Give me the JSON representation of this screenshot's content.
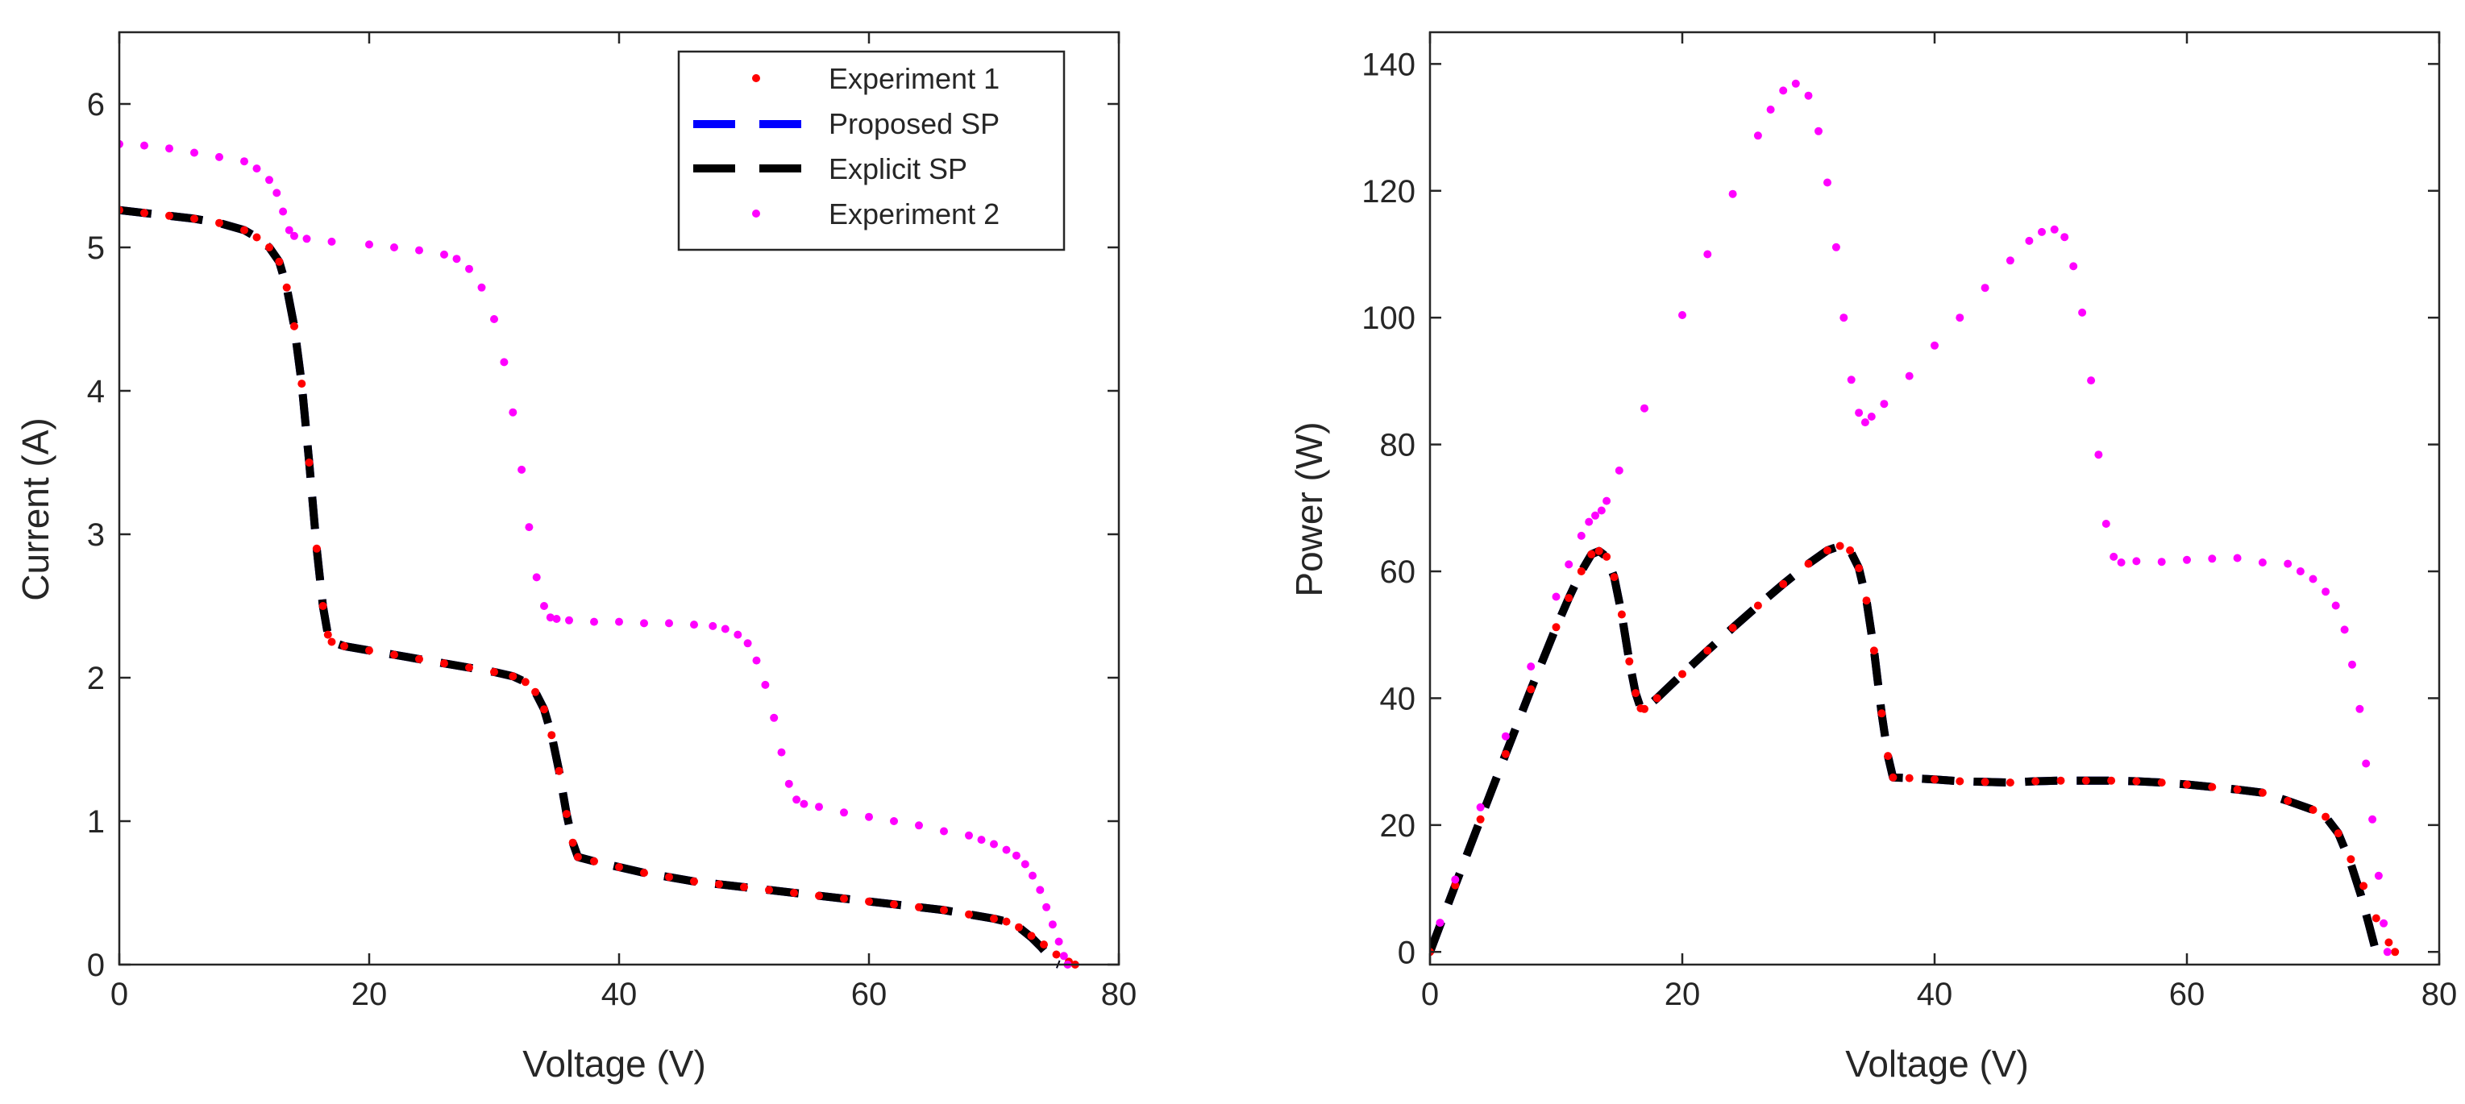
{
  "colors": {
    "experiment1": "#ff0000",
    "proposed_sp": "#0000ff",
    "explicit_sp": "#000000",
    "experiment2": "#ff00ff",
    "axes": "#262626"
  },
  "chart_data": [
    {
      "type": "line",
      "id": "iv",
      "title": "",
      "xlabel": "Voltage (V)",
      "ylabel": "Current (A)",
      "xlim": [
        0,
        80
      ],
      "ylim": [
        0,
        6.5
      ],
      "xticks": [
        0,
        20,
        40,
        60,
        80
      ],
      "yticks": [
        0,
        1,
        2,
        3,
        4,
        5,
        6
      ],
      "legend": {
        "placement": "top-right",
        "entries": [
          {
            "label": "Experiment 1",
            "style": "dots",
            "color_key": "experiment1"
          },
          {
            "label": "Proposed SP",
            "style": "dashed",
            "color_key": "proposed_sp"
          },
          {
            "label": "Explicit SP",
            "style": "dashed",
            "color_key": "explicit_sp"
          },
          {
            "label": "Experiment 2",
            "style": "dots",
            "color_key": "experiment2"
          }
        ]
      },
      "series": [
        {
          "name": "Experiment 1",
          "style": "dots",
          "color_key": "experiment1",
          "x": [
            0,
            2,
            4,
            6,
            8,
            10,
            11,
            12,
            12.8,
            13.4,
            14,
            14.6,
            15.2,
            15.8,
            16.3,
            16.7,
            17,
            18,
            20,
            22,
            24,
            26,
            28,
            30,
            31.5,
            32.5,
            33.3,
            34,
            34.6,
            35.2,
            35.8,
            36.3,
            36.7,
            38,
            40,
            42,
            44,
            46,
            48,
            50,
            52,
            54,
            56,
            58,
            60,
            62,
            64,
            66,
            68,
            70,
            71,
            72,
            73,
            74,
            75,
            76,
            76.5
          ],
          "y": [
            5.26,
            5.24,
            5.22,
            5.2,
            5.17,
            5.12,
            5.07,
            5,
            4.9,
            4.72,
            4.45,
            4.05,
            3.5,
            2.9,
            2.5,
            2.3,
            2.25,
            2.22,
            2.19,
            2.16,
            2.13,
            2.1,
            2.07,
            2.04,
            2.01,
            1.97,
            1.9,
            1.78,
            1.6,
            1.35,
            1.05,
            0.85,
            0.75,
            0.72,
            0.68,
            0.64,
            0.61,
            0.58,
            0.56,
            0.54,
            0.52,
            0.5,
            0.48,
            0.46,
            0.44,
            0.42,
            0.4,
            0.38,
            0.35,
            0.32,
            0.3,
            0.26,
            0.2,
            0.14,
            0.07,
            0.02,
            0
          ]
        },
        {
          "name": "Proposed SP",
          "style": "dashed",
          "color_key": "proposed_sp",
          "x": [
            0,
            2,
            4,
            6,
            8,
            10,
            11,
            12,
            12.8,
            13.4,
            14,
            14.6,
            15.2,
            15.8,
            16.3,
            16.7,
            17,
            18,
            20,
            22,
            24,
            26,
            28,
            30,
            31.5,
            32.5,
            33.3,
            34,
            34.6,
            35.2,
            35.8,
            36.3,
            36.7,
            38,
            40,
            42,
            44,
            46,
            48,
            50,
            52,
            54,
            56,
            58,
            60,
            62,
            64,
            66,
            68,
            70,
            71,
            72,
            73,
            73.8,
            74.4,
            74.9,
            75.2
          ],
          "y": [
            5.26,
            5.24,
            5.22,
            5.2,
            5.17,
            5.12,
            5.07,
            5,
            4.9,
            4.72,
            4.45,
            4.05,
            3.5,
            2.9,
            2.5,
            2.3,
            2.25,
            2.22,
            2.19,
            2.16,
            2.13,
            2.1,
            2.07,
            2.04,
            2.01,
            1.97,
            1.9,
            1.78,
            1.6,
            1.35,
            1.05,
            0.85,
            0.75,
            0.72,
            0.68,
            0.64,
            0.61,
            0.58,
            0.56,
            0.54,
            0.52,
            0.5,
            0.48,
            0.46,
            0.44,
            0.42,
            0.4,
            0.38,
            0.35,
            0.32,
            0.3,
            0.26,
            0.19,
            0.12,
            0.06,
            0.01,
            0
          ]
        },
        {
          "name": "Explicit SP",
          "style": "dashed",
          "color_key": "explicit_sp",
          "x": [
            0,
            2,
            4,
            6,
            8,
            10,
            11,
            12,
            12.8,
            13.4,
            14,
            14.6,
            15.2,
            15.8,
            16.3,
            16.7,
            17,
            18,
            20,
            22,
            24,
            26,
            28,
            30,
            31.5,
            32.5,
            33.3,
            34,
            34.6,
            35.2,
            35.8,
            36.3,
            36.7,
            38,
            40,
            42,
            44,
            46,
            48,
            50,
            52,
            54,
            56,
            58,
            60,
            62,
            64,
            66,
            68,
            70,
            71,
            72,
            73,
            73.8,
            74.4,
            74.9,
            75.2
          ],
          "y": [
            5.26,
            5.24,
            5.22,
            5.2,
            5.17,
            5.12,
            5.07,
            5,
            4.9,
            4.72,
            4.45,
            4.05,
            3.5,
            2.9,
            2.5,
            2.3,
            2.25,
            2.22,
            2.19,
            2.16,
            2.13,
            2.1,
            2.07,
            2.04,
            2.01,
            1.97,
            1.9,
            1.78,
            1.6,
            1.35,
            1.05,
            0.85,
            0.75,
            0.72,
            0.68,
            0.64,
            0.61,
            0.58,
            0.56,
            0.54,
            0.52,
            0.5,
            0.48,
            0.46,
            0.44,
            0.42,
            0.4,
            0.38,
            0.35,
            0.32,
            0.3,
            0.26,
            0.19,
            0.12,
            0.06,
            0.01,
            0
          ]
        },
        {
          "name": "Experiment 2",
          "style": "dots",
          "color_key": "experiment2",
          "x": [
            0,
            2,
            4,
            6,
            8,
            10,
            11,
            12,
            12.6,
            13.1,
            13.6,
            14,
            15,
            17,
            20,
            22,
            24,
            26,
            27,
            28,
            29,
            30,
            30.8,
            31.5,
            32.2,
            32.8,
            33.4,
            34,
            34.5,
            35,
            36,
            38,
            40,
            42,
            44,
            46,
            47.5,
            48.5,
            49.5,
            50.3,
            51,
            51.7,
            52.4,
            53,
            53.6,
            54.2,
            54.8,
            56,
            58,
            60,
            62,
            64,
            66,
            68,
            69,
            70,
            71,
            71.8,
            72.5,
            73.1,
            73.7,
            74.2,
            74.7,
            75.2,
            75.6,
            75.9
          ],
          "y": [
            5.72,
            5.71,
            5.69,
            5.66,
            5.63,
            5.6,
            5.55,
            5.47,
            5.38,
            5.25,
            5.12,
            5.08,
            5.06,
            5.04,
            5.02,
            5,
            4.98,
            4.95,
            4.92,
            4.85,
            4.72,
            4.5,
            4.2,
            3.85,
            3.45,
            3.05,
            2.7,
            2.5,
            2.42,
            2.41,
            2.4,
            2.39,
            2.39,
            2.38,
            2.38,
            2.37,
            2.36,
            2.34,
            2.3,
            2.24,
            2.12,
            1.95,
            1.72,
            1.48,
            1.26,
            1.15,
            1.12,
            1.1,
            1.06,
            1.03,
            1,
            0.97,
            0.93,
            0.9,
            0.87,
            0.84,
            0.8,
            0.76,
            0.7,
            0.62,
            0.52,
            0.4,
            0.28,
            0.16,
            0.06,
            0
          ]
        }
      ]
    },
    {
      "type": "line",
      "id": "pv",
      "title": "",
      "xlabel": "Voltage (V)",
      "ylabel": "Power (W)",
      "xlim": [
        0,
        80
      ],
      "ylim": [
        -2,
        145
      ],
      "xticks": [
        0,
        20,
        40,
        60,
        80
      ],
      "yticks": [
        0,
        20,
        40,
        60,
        80,
        100,
        120,
        140
      ],
      "series": [
        {
          "name": "Experiment 1",
          "style": "dots",
          "color_key": "experiment1",
          "x": [
            0,
            2,
            4,
            6,
            8,
            10,
            11,
            12,
            12.8,
            13.4,
            14,
            14.6,
            15.2,
            15.8,
            16.3,
            16.7,
            17,
            18,
            20,
            22,
            24,
            26,
            28,
            30,
            31.5,
            32.5,
            33.3,
            34,
            34.6,
            35.2,
            35.8,
            36.3,
            36.7,
            38,
            40,
            42,
            44,
            46,
            48,
            50,
            52,
            54,
            56,
            58,
            60,
            62,
            64,
            66,
            68,
            70,
            71,
            72,
            73,
            74,
            75,
            76,
            76.5
          ],
          "y": [
            0,
            10.5,
            20.9,
            31.2,
            41.4,
            51.2,
            55.8,
            60,
            62.7,
            63.2,
            62.3,
            59.1,
            53.2,
            45.8,
            40.8,
            38.4,
            38.3,
            40,
            43.8,
            47.5,
            51.1,
            54.6,
            58,
            61.2,
            63.3,
            64,
            63.3,
            60.5,
            55.4,
            47.5,
            37.6,
            30.9,
            27.5,
            27.4,
            27.2,
            26.9,
            26.8,
            26.7,
            26.9,
            27,
            27,
            27,
            26.9,
            26.7,
            26.4,
            26,
            25.6,
            25.1,
            23.8,
            22.4,
            21.3,
            18.7,
            14.6,
            10.4,
            5.3,
            1.5,
            0
          ]
        },
        {
          "name": "Proposed SP",
          "style": "dashed",
          "color_key": "proposed_sp",
          "x": [
            0,
            2,
            4,
            6,
            8,
            10,
            11,
            12,
            12.8,
            13.4,
            14,
            14.6,
            15.2,
            15.8,
            16.3,
            16.7,
            17,
            18,
            20,
            22,
            24,
            26,
            28,
            30,
            31.5,
            32.5,
            33.3,
            34,
            34.6,
            35.2,
            35.8,
            36.3,
            36.7,
            38,
            40,
            42,
            44,
            46,
            48,
            50,
            52,
            54,
            56,
            58,
            60,
            62,
            64,
            66,
            68,
            70,
            71,
            72,
            73,
            73.8,
            74.4,
            74.9,
            75.2
          ],
          "y": [
            0,
            10.5,
            20.9,
            31.2,
            41.4,
            51.2,
            55.8,
            60,
            62.7,
            63.2,
            62.3,
            59.1,
            53.2,
            45.8,
            40.8,
            38.4,
            38.3,
            40,
            43.8,
            47.5,
            51.1,
            54.6,
            58,
            61.2,
            63.3,
            64,
            63.3,
            60.5,
            55.4,
            47.5,
            37.6,
            30.9,
            27.5,
            27.4,
            27.2,
            26.9,
            26.8,
            26.7,
            26.9,
            27,
            27,
            27,
            26.9,
            26.7,
            26.4,
            26,
            25.6,
            25.1,
            23.8,
            22.4,
            21.3,
            18.7,
            13.9,
            8.9,
            4.5,
            0.7,
            -2
          ]
        },
        {
          "name": "Explicit SP",
          "style": "dashed",
          "color_key": "explicit_sp",
          "x": [
            0,
            2,
            4,
            6,
            8,
            10,
            11,
            12,
            12.8,
            13.4,
            14,
            14.6,
            15.2,
            15.8,
            16.3,
            16.7,
            17,
            18,
            20,
            22,
            24,
            26,
            28,
            30,
            31.5,
            32.5,
            33.3,
            34,
            34.6,
            35.2,
            35.8,
            36.3,
            36.7,
            38,
            40,
            42,
            44,
            46,
            48,
            50,
            52,
            54,
            56,
            58,
            60,
            62,
            64,
            66,
            68,
            70,
            71,
            72,
            73,
            73.8,
            74.4,
            74.9,
            75.2
          ],
          "y": [
            0,
            10.5,
            20.9,
            31.2,
            41.4,
            51.2,
            55.8,
            60,
            62.7,
            63.2,
            62.3,
            59.1,
            53.2,
            45.8,
            40.8,
            38.4,
            38.3,
            40,
            43.8,
            47.5,
            51.1,
            54.6,
            58,
            61.2,
            63.3,
            64,
            63.3,
            60.5,
            55.4,
            47.5,
            37.6,
            30.9,
            27.5,
            27.4,
            27.2,
            26.9,
            26.8,
            26.7,
            26.9,
            27,
            27,
            27,
            26.9,
            26.7,
            26.4,
            26,
            25.6,
            25.1,
            23.8,
            22.4,
            21.3,
            18.7,
            13.9,
            8.9,
            4.5,
            0.7,
            -2
          ]
        },
        {
          "name": "Experiment 2",
          "style": "dots",
          "color_key": "experiment2",
          "x": [
            0.8,
            2,
            4,
            6,
            8,
            10,
            11,
            12,
            12.6,
            13.1,
            13.6,
            14,
            15,
            17,
            20,
            22,
            24,
            26,
            27,
            28,
            29,
            30,
            30.8,
            31.5,
            32.2,
            32.8,
            33.4,
            34,
            34.5,
            35,
            36,
            38,
            40,
            42,
            44,
            46,
            47.5,
            48.5,
            49.5,
            50.3,
            51,
            51.7,
            52.4,
            53,
            53.6,
            54.2,
            54.8,
            56,
            58,
            60,
            62,
            64,
            66,
            68,
            69,
            70,
            71,
            71.8,
            72.5,
            73.1,
            73.7,
            74.2,
            74.7,
            75.2,
            75.6,
            75.9
          ],
          "y": [
            4.6,
            11.4,
            22.8,
            34,
            45,
            56,
            61.1,
            65.6,
            67.8,
            68.8,
            69.6,
            71.1,
            75.9,
            85.7,
            100.4,
            110,
            119.5,
            128.7,
            132.8,
            135.8,
            136.9,
            135,
            129.4,
            121.3,
            111.1,
            100,
            90.2,
            85,
            83.5,
            84.4,
            86.4,
            90.8,
            95.6,
            100,
            104.7,
            109,
            112.1,
            113.5,
            113.9,
            112.7,
            108.1,
            100.8,
            90.1,
            78.4,
            67.5,
            62.3,
            61.4,
            61.6,
            61.5,
            61.8,
            62,
            62.1,
            61.4,
            61.2,
            60,
            58.8,
            56.8,
            54.6,
            50.8,
            45.3,
            38.3,
            29.7,
            20.9,
            12,
            4.5,
            0
          ]
        }
      ]
    }
  ]
}
